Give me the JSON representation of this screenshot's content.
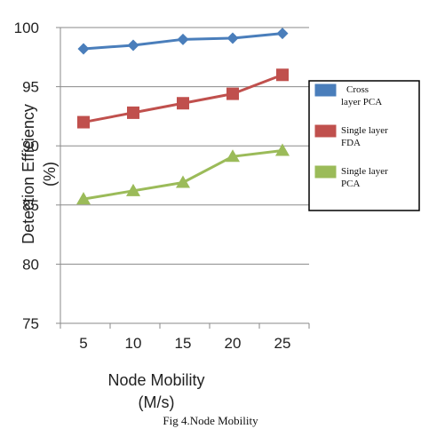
{
  "chart_data": {
    "type": "line",
    "title": "",
    "xlabel_line1": "Node Mobility",
    "xlabel_line2": "(M/s)",
    "ylabel_line1": "Detection Efficiency",
    "ylabel_line2": "(%)",
    "x": [
      5,
      10,
      15,
      20,
      25
    ],
    "x_ticks": [
      "5",
      "10",
      "15",
      "20",
      "25"
    ],
    "ylim": [
      75,
      100
    ],
    "y_ticks": [
      75,
      80,
      85,
      90,
      95,
      100
    ],
    "y_tick_labels": [
      "75",
      "80",
      "85",
      "90",
      "95",
      "100"
    ],
    "grid": "horizontal",
    "legend_position": "right",
    "series": [
      {
        "name": "Cross layer PCA",
        "legend_lines": [
          "Cross",
          "layer PCA"
        ],
        "marker": "diamond",
        "color": "#4a7ebb",
        "values": [
          98.2,
          98.5,
          99.0,
          99.1,
          99.5
        ]
      },
      {
        "name": "Single layer FDA",
        "legend_lines": [
          "Single   layer",
          "FDA"
        ],
        "marker": "square",
        "color": "#c0504d",
        "values": [
          92.0,
          92.8,
          93.6,
          94.4,
          96.0
        ]
      },
      {
        "name": "Single layer PCA",
        "legend_lines": [
          "Single layer",
          "PCA"
        ],
        "marker": "triangle",
        "color": "#9bbb59",
        "values": [
          85.5,
          86.2,
          86.9,
          89.1,
          89.6
        ]
      }
    ]
  },
  "caption": "Fig 4.Node Mobility"
}
